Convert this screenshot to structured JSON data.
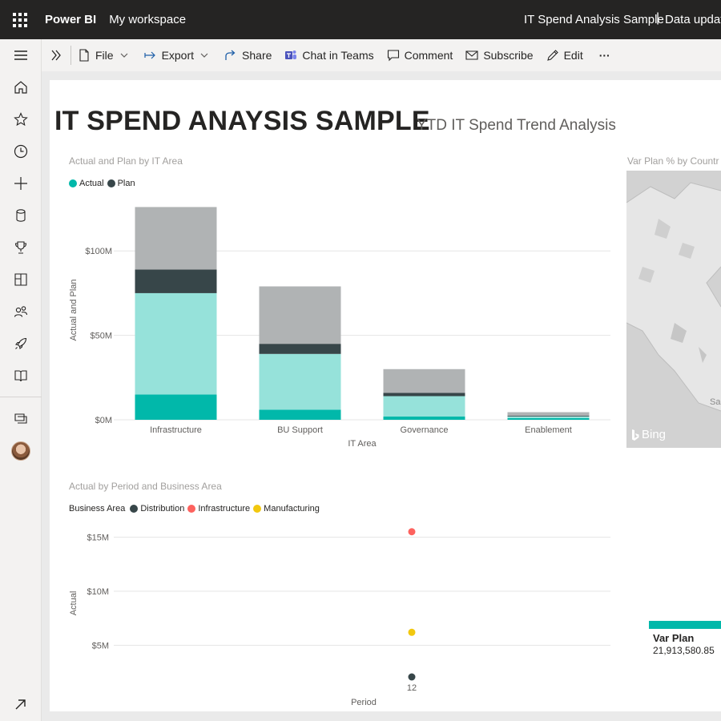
{
  "topbar": {
    "brand": "Power BI",
    "workspace": "My workspace",
    "report_title": "IT Spend Analysis Sample",
    "separator": "|",
    "data_updated": "Data updat"
  },
  "cmdbar": {
    "file": "File",
    "export": "Export",
    "share": "Share",
    "chat_in_teams": "Chat in Teams",
    "comment": "Comment",
    "subscribe": "Subscribe",
    "edit": "Edit",
    "more": "···"
  },
  "page": {
    "title": "IT SPEND ANAYSIS SAMPLE",
    "subtitle": "YTD IT Spend Trend Analysis"
  },
  "bar_visual": {
    "title": "Actual and Plan by IT Area"
  },
  "scatter_visual": {
    "title": "Actual by Period and Business Area",
    "legend_title": "Business Area"
  },
  "map_visual": {
    "title": "Var Plan % by Countr",
    "attribution": "Bing"
  },
  "card": {
    "label": "Var Plan",
    "value": "21,913,580.85"
  },
  "colors": {
    "actual": "#01b8aa",
    "actual_light": "#96e2da",
    "plan": "#374649",
    "plan_light": "#b0b3b4",
    "distribution": "#374649",
    "infrastructure": "#fd625e",
    "manufacturing": "#f2c80f"
  },
  "chart_data": [
    {
      "type": "bar",
      "title": "Actual and Plan by IT Area",
      "xlabel": "IT Area",
      "ylabel": "Actual and Plan",
      "categories": [
        "Infrastructure",
        "BU Support",
        "Governance",
        "Enablement"
      ],
      "legend": [
        "Actual",
        "Plan"
      ],
      "legend_position": "top-left",
      "ylim": [
        0,
        130000000
      ],
      "yticks": [
        0,
        50000000,
        100000000
      ],
      "ytick_labels": [
        "$0M",
        "$50M",
        "$100M"
      ],
      "stacks": [
        {
          "name": "Actual",
          "color": "#01b8aa",
          "values": [
            15000000,
            6000000,
            2000000,
            1000000
          ]
        },
        {
          "name": "Actual",
          "color": "#96e2da",
          "values": [
            60000000,
            33000000,
            12000000,
            1000000
          ]
        },
        {
          "name": "Plan",
          "color": "#374649",
          "values": [
            14000000,
            6000000,
            2000000,
            500000
          ]
        },
        {
          "name": "Plan",
          "color": "#b0b3b4",
          "values": [
            37000000,
            34000000,
            14000000,
            2000000
          ]
        }
      ]
    },
    {
      "type": "scatter",
      "title": "Actual by Period and Business Area",
      "xlabel": "Period",
      "ylabel": "Actual",
      "legend_title": "Business Area",
      "x_categories": [
        "12"
      ],
      "ylim": [
        0,
        16000000
      ],
      "yticks": [
        5000000,
        10000000,
        15000000
      ],
      "ytick_labels": [
        "$5M",
        "$10M",
        "$15M"
      ],
      "series": [
        {
          "name": "Distribution",
          "color": "#374649",
          "points": [
            {
              "x": "12",
              "y": 0
            }
          ]
        },
        {
          "name": "Infrastructure",
          "color": "#fd625e",
          "points": [
            {
              "x": "12",
              "y": 15500000
            }
          ]
        },
        {
          "name": "Manufacturing",
          "color": "#f2c80f",
          "points": [
            {
              "x": "12",
              "y": 6200000
            }
          ]
        }
      ]
    }
  ]
}
